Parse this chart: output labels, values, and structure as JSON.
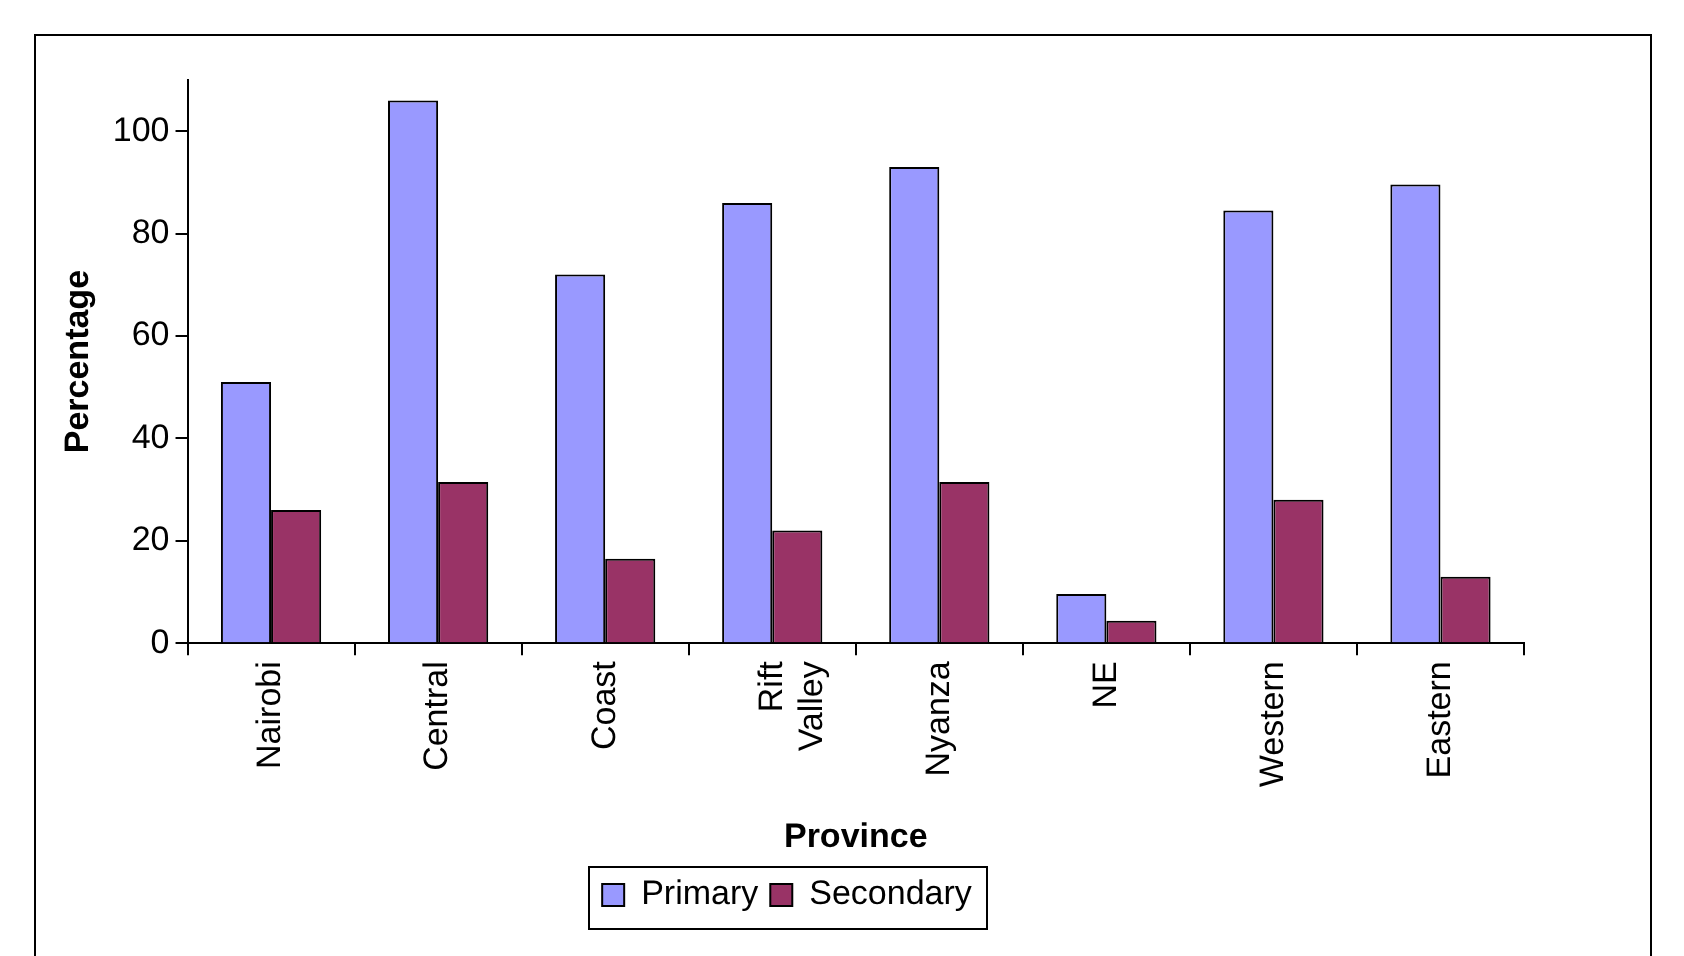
{
  "chart_data": {
    "type": "bar",
    "xlabel": "Province",
    "ylabel": "Percentage",
    "categories": [
      "Nairobi",
      "Central",
      "Coast",
      "Rift Valley",
      "Nyanza",
      "NE",
      "Western",
      "Eastern"
    ],
    "series": [
      {
        "name": "Primary",
        "color": "#9999ff",
        "values": [
          51,
          106,
          72,
          86,
          93,
          9.6,
          84.5,
          89.6
        ]
      },
      {
        "name": "Secondary",
        "color": "#993366",
        "values": [
          26,
          31.5,
          16.5,
          22,
          31.5,
          4.4,
          28,
          13
        ]
      }
    ],
    "ylim": [
      0,
      110
    ],
    "yticks": [
      0,
      20,
      40,
      60,
      80,
      100
    ],
    "grid": false,
    "legend": "bottom"
  }
}
